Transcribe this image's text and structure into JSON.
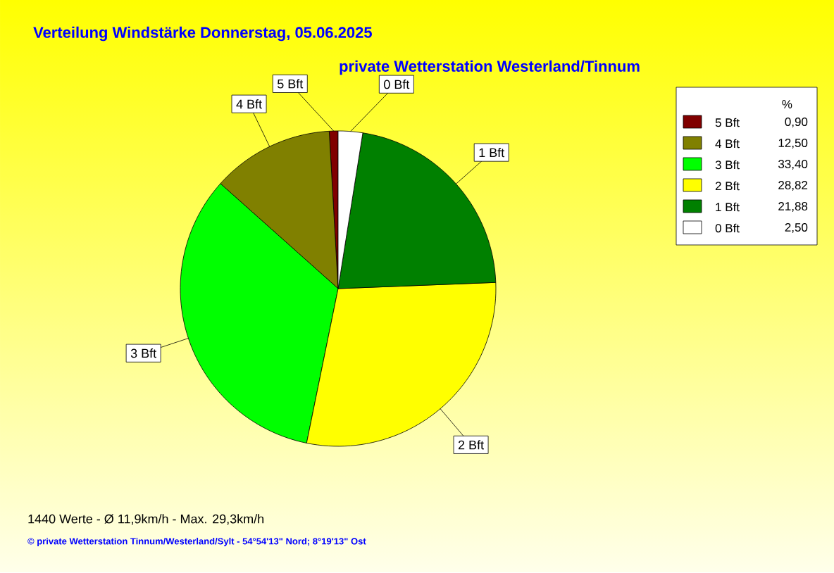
{
  "chart_data": {
    "type": "pie",
    "title": "Verteilung Windstärke  Donnerstag, 05.06.2025",
    "subtitle": "private Wetterstation Westerland/Tinnum",
    "categories": [
      "5 Bft",
      "4 Bft",
      "3 Bft",
      "2 Bft",
      "1 Bft",
      "0 Bft"
    ],
    "values": [
      0.9,
      12.5,
      33.4,
      28.82,
      21.88,
      2.5
    ],
    "colors": [
      "#800000",
      "#808000",
      "#00ff00",
      "#ffff00",
      "#008000",
      "#ffffff"
    ],
    "value_labels": [
      "0,90",
      "12,50",
      "33,40",
      "28,82",
      "21,88",
      "2,50"
    ],
    "legend_title": "%",
    "legend": "right",
    "annotations": [
      "1440 Werte   -   Ø 11,9km/h  -  Max. 29,3km/h",
      "© private Wetterstation Tinnum/Westerland/Sylt   -   54°54'13\" Nord; 8°19'13\" Ost"
    ]
  }
}
